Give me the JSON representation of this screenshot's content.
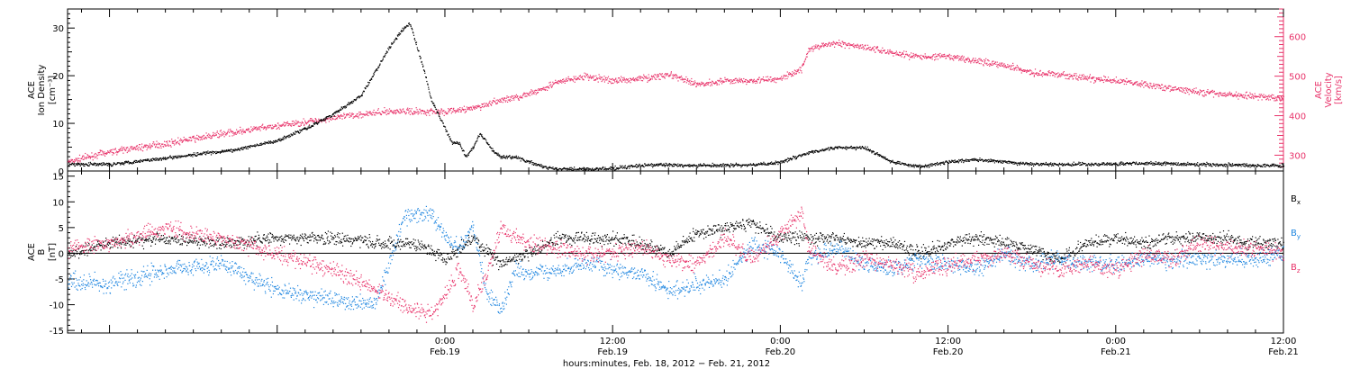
{
  "chart_data": [
    {
      "id": "density_velocity",
      "type": "scatter",
      "x_range_hours": [
        -27,
        60
      ],
      "left_axis": {
        "label_lines": [
          "ACE",
          "Ion Density",
          "[cm⁻³]"
        ],
        "ylim": [
          0,
          34
        ],
        "ticks": [
          0,
          10,
          20,
          30
        ],
        "color": "#000000"
      },
      "right_axis": {
        "label_lines": [
          "ACE",
          "Velocity",
          "[km/s]"
        ],
        "ylim": [
          260,
          670
        ],
        "ticks": [
          300,
          400,
          500,
          600
        ],
        "color": "#e8336a"
      },
      "series": [
        {
          "axis": "left",
          "color": "#000000",
          "noise": 0.35,
          "x": [
            -27,
            -24,
            -21,
            -18,
            -15,
            -12,
            -10,
            -8,
            -6,
            -5,
            -4,
            -3,
            -2.5,
            -2,
            -1.5,
            -1,
            0,
            0.5,
            1,
            1.5,
            2,
            2.5,
            3,
            3.5,
            4,
            5,
            6,
            7,
            8,
            9,
            10,
            12,
            14,
            16,
            18,
            20,
            22,
            23,
            24,
            25,
            26,
            28,
            30,
            32,
            34,
            36,
            38,
            40,
            42,
            44,
            46,
            48,
            50,
            52,
            54,
            56,
            58,
            60
          ],
          "y": [
            1.5,
            1.5,
            2.5,
            3.5,
            4.5,
            6.5,
            9,
            12,
            16,
            21,
            26,
            30,
            31,
            26,
            21,
            15,
            9,
            6,
            6,
            3,
            5,
            8,
            6,
            4,
            3,
            3,
            2,
            1,
            0.5,
            0.5,
            0.5,
            0.6,
            1.3,
            1.4,
            1.2,
            1.3,
            1.4,
            1.5,
            2,
            3,
            4,
            5,
            5,
            2,
            1,
            2,
            2.5,
            2,
            1.5,
            1.5,
            1.5,
            1.6,
            1.7,
            1.6,
            1.5,
            1.4,
            1.3,
            1.2
          ]
        },
        {
          "axis": "right",
          "color": "#e8336a",
          "noise": 8,
          "x": [
            -27,
            -24,
            -20,
            -16,
            -12,
            -8,
            -6,
            -4,
            -2,
            0,
            1,
            2,
            4,
            6,
            8,
            10,
            12,
            14,
            16,
            18,
            20,
            22,
            24,
            25.5,
            26,
            28,
            30,
            32,
            34,
            36,
            38,
            40,
            42,
            44,
            46,
            48,
            50,
            52,
            54,
            56,
            58,
            60
          ],
          "y": [
            285,
            310,
            330,
            355,
            375,
            395,
            405,
            412,
            412,
            412,
            415,
            420,
            440,
            455,
            485,
            500,
            490,
            495,
            505,
            480,
            490,
            490,
            495,
            520,
            570,
            585,
            575,
            560,
            550,
            550,
            540,
            530,
            510,
            505,
            495,
            490,
            480,
            470,
            460,
            455,
            450,
            445
          ]
        }
      ]
    },
    {
      "id": "magnetic_field",
      "type": "scatter",
      "x_range_hours": [
        -27,
        60
      ],
      "axis": {
        "label_lines": [
          "ACE",
          "B",
          "[nT]"
        ],
        "ylim": [
          -15.5,
          16
        ],
        "ticks": [
          -15,
          -10,
          -5,
          0,
          5,
          10,
          15
        ]
      },
      "legend": [
        {
          "text": "B",
          "sub": "x",
          "color": "#000000"
        },
        {
          "text": "B",
          "sub": "y",
          "color": "#1f86e0"
        },
        {
          "text": "B",
          "sub": "z",
          "color": "#e8336a"
        }
      ],
      "series": [
        {
          "name": "Bx",
          "color": "#000000",
          "noise": 1.2,
          "x": [
            -27,
            -24,
            -20,
            -16,
            -12,
            -8,
            -4,
            -2,
            0,
            2,
            4,
            6,
            8,
            10,
            12,
            14,
            16,
            18,
            20,
            22,
            24,
            26,
            28,
            30,
            32,
            34,
            36,
            38,
            40,
            42,
            44,
            46,
            48,
            50,
            52,
            54,
            56,
            58,
            60
          ],
          "y": [
            0,
            2,
            3,
            2,
            3,
            3,
            2,
            2,
            -1,
            3,
            -2,
            0,
            3,
            3,
            3,
            2,
            0,
            4,
            5,
            6,
            3,
            3,
            3,
            2,
            2,
            0,
            2,
            3,
            2,
            1,
            -1,
            2,
            3,
            2,
            3,
            3,
            3,
            2,
            2
          ]
        },
        {
          "name": "By",
          "color": "#1f86e0",
          "noise": 1.6,
          "x": [
            -27,
            -24,
            -20,
            -16,
            -12,
            -8,
            -5,
            -3,
            -1,
            0,
            1,
            2,
            3,
            4,
            5,
            6,
            8,
            10,
            12,
            14,
            16,
            18,
            20,
            22,
            24,
            25.5,
            26,
            28,
            30,
            32,
            34,
            36,
            38,
            40,
            42,
            44,
            46,
            48,
            50,
            52,
            54,
            56,
            58,
            60
          ],
          "y": [
            -5,
            -6,
            -3,
            -2,
            -7,
            -9,
            -10,
            7,
            8,
            3,
            1,
            5,
            -8,
            -11,
            -3,
            -4,
            -3,
            -2,
            -3,
            -4,
            -7,
            -6,
            -5,
            2,
            0,
            -6,
            -1,
            1,
            -2,
            -3,
            -1,
            -2,
            -3,
            0,
            -2,
            -1,
            -2,
            -2,
            -1,
            -1,
            -1,
            -1,
            -1,
            0
          ]
        },
        {
          "name": "Bz",
          "color": "#e8336a",
          "noise": 1.6,
          "x": [
            -27,
            -24,
            -20,
            -16,
            -12,
            -8,
            -5,
            -3,
            -1,
            0,
            1,
            2,
            3,
            4,
            5,
            6,
            8,
            10,
            12,
            14,
            16,
            18,
            20,
            22,
            24,
            25.5,
            26,
            28,
            30,
            32,
            34,
            36,
            38,
            40,
            42,
            44,
            46,
            48,
            50,
            52,
            54,
            56,
            58,
            60
          ],
          "y": [
            1,
            2,
            5,
            3,
            0,
            -3,
            -7,
            -10,
            -12,
            -8,
            -3,
            -10,
            -4,
            5,
            3,
            2,
            1,
            0,
            0,
            1,
            -1,
            -2,
            3,
            -1,
            4,
            8,
            1,
            -3,
            -1,
            -2,
            -4,
            -2,
            -1,
            0,
            -2,
            -3,
            -2,
            -3,
            0,
            -1,
            2,
            1,
            1,
            0
          ]
        }
      ]
    }
  ],
  "x_axis": {
    "tick_labels": [
      {
        "hour": 0,
        "time": "0:00",
        "date": "Feb.19"
      },
      {
        "hour": 12,
        "time": "12:00",
        "date": "Feb.19"
      },
      {
        "hour": 24,
        "time": "0:00",
        "date": "Feb.20"
      },
      {
        "hour": 36,
        "time": "12:00",
        "date": "Feb.20"
      },
      {
        "hour": 48,
        "time": "0:00",
        "date": "Feb.21"
      },
      {
        "hour": 60,
        "time": "12:00",
        "date": "Feb.21"
      }
    ],
    "title": "hours:minutes, Feb. 18, 2012 − Feb. 21, 2012"
  }
}
